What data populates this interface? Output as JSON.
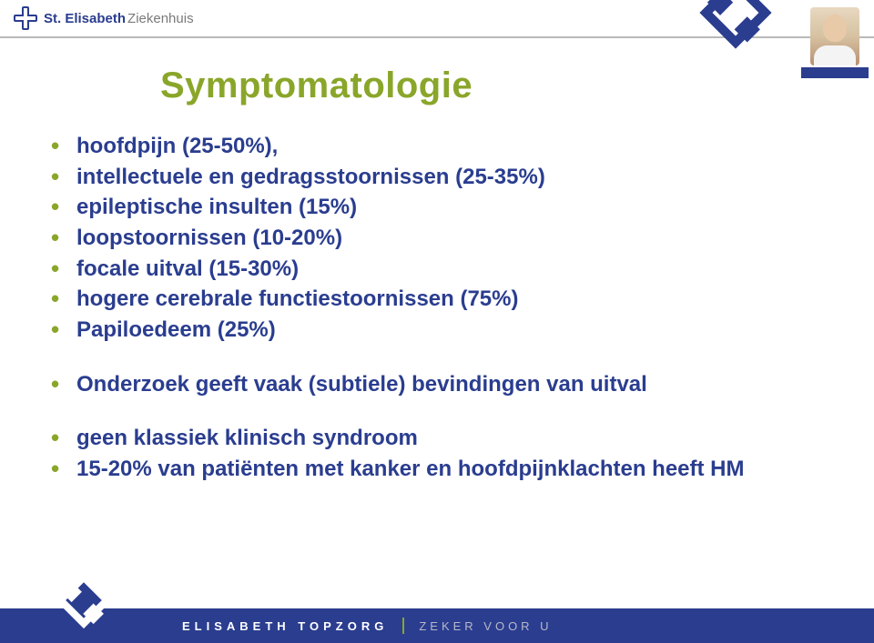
{
  "colors": {
    "brand_blue": "#2a3d8f",
    "accent_green": "#8aa62a",
    "header_gray": "#7a7a7a",
    "header_line": "#b9b9b9",
    "white": "#ffffff",
    "footer_muted": "#b8b8c8"
  },
  "typography": {
    "title_fontsize_pt": 30,
    "bullet_fontsize_pt": 18,
    "bullet_fontweight": "bold",
    "footer_fontsize_pt": 10,
    "font_family": "Verdana"
  },
  "header": {
    "logo_strong": "St. Elisabeth",
    "logo_light": "Ziekenhuis"
  },
  "title": "Symptomatologie",
  "bullets_group1": [
    "hoofdpijn (25-50%),",
    "intellectuele en gedragsstoornissen (25-35%)",
    "epileptische insulten (15%)",
    "loopstoornissen (10-20%)",
    "focale uitval (15-30%)",
    "hogere cerebrale functiestoornissen (75%)",
    "Papiloedeem (25%)"
  ],
  "bullets_group2": [
    "Onderzoek geeft vaak (subtiele) bevindingen van uitval"
  ],
  "bullets_group3": [
    "geen klassiek klinisch syndroom",
    "15-20% van patiënten met kanker en hoofdpijnklachten heeft HM"
  ],
  "footer": {
    "left": "ELISABETH TOPZORG",
    "right": "ZEKER VOOR U"
  }
}
